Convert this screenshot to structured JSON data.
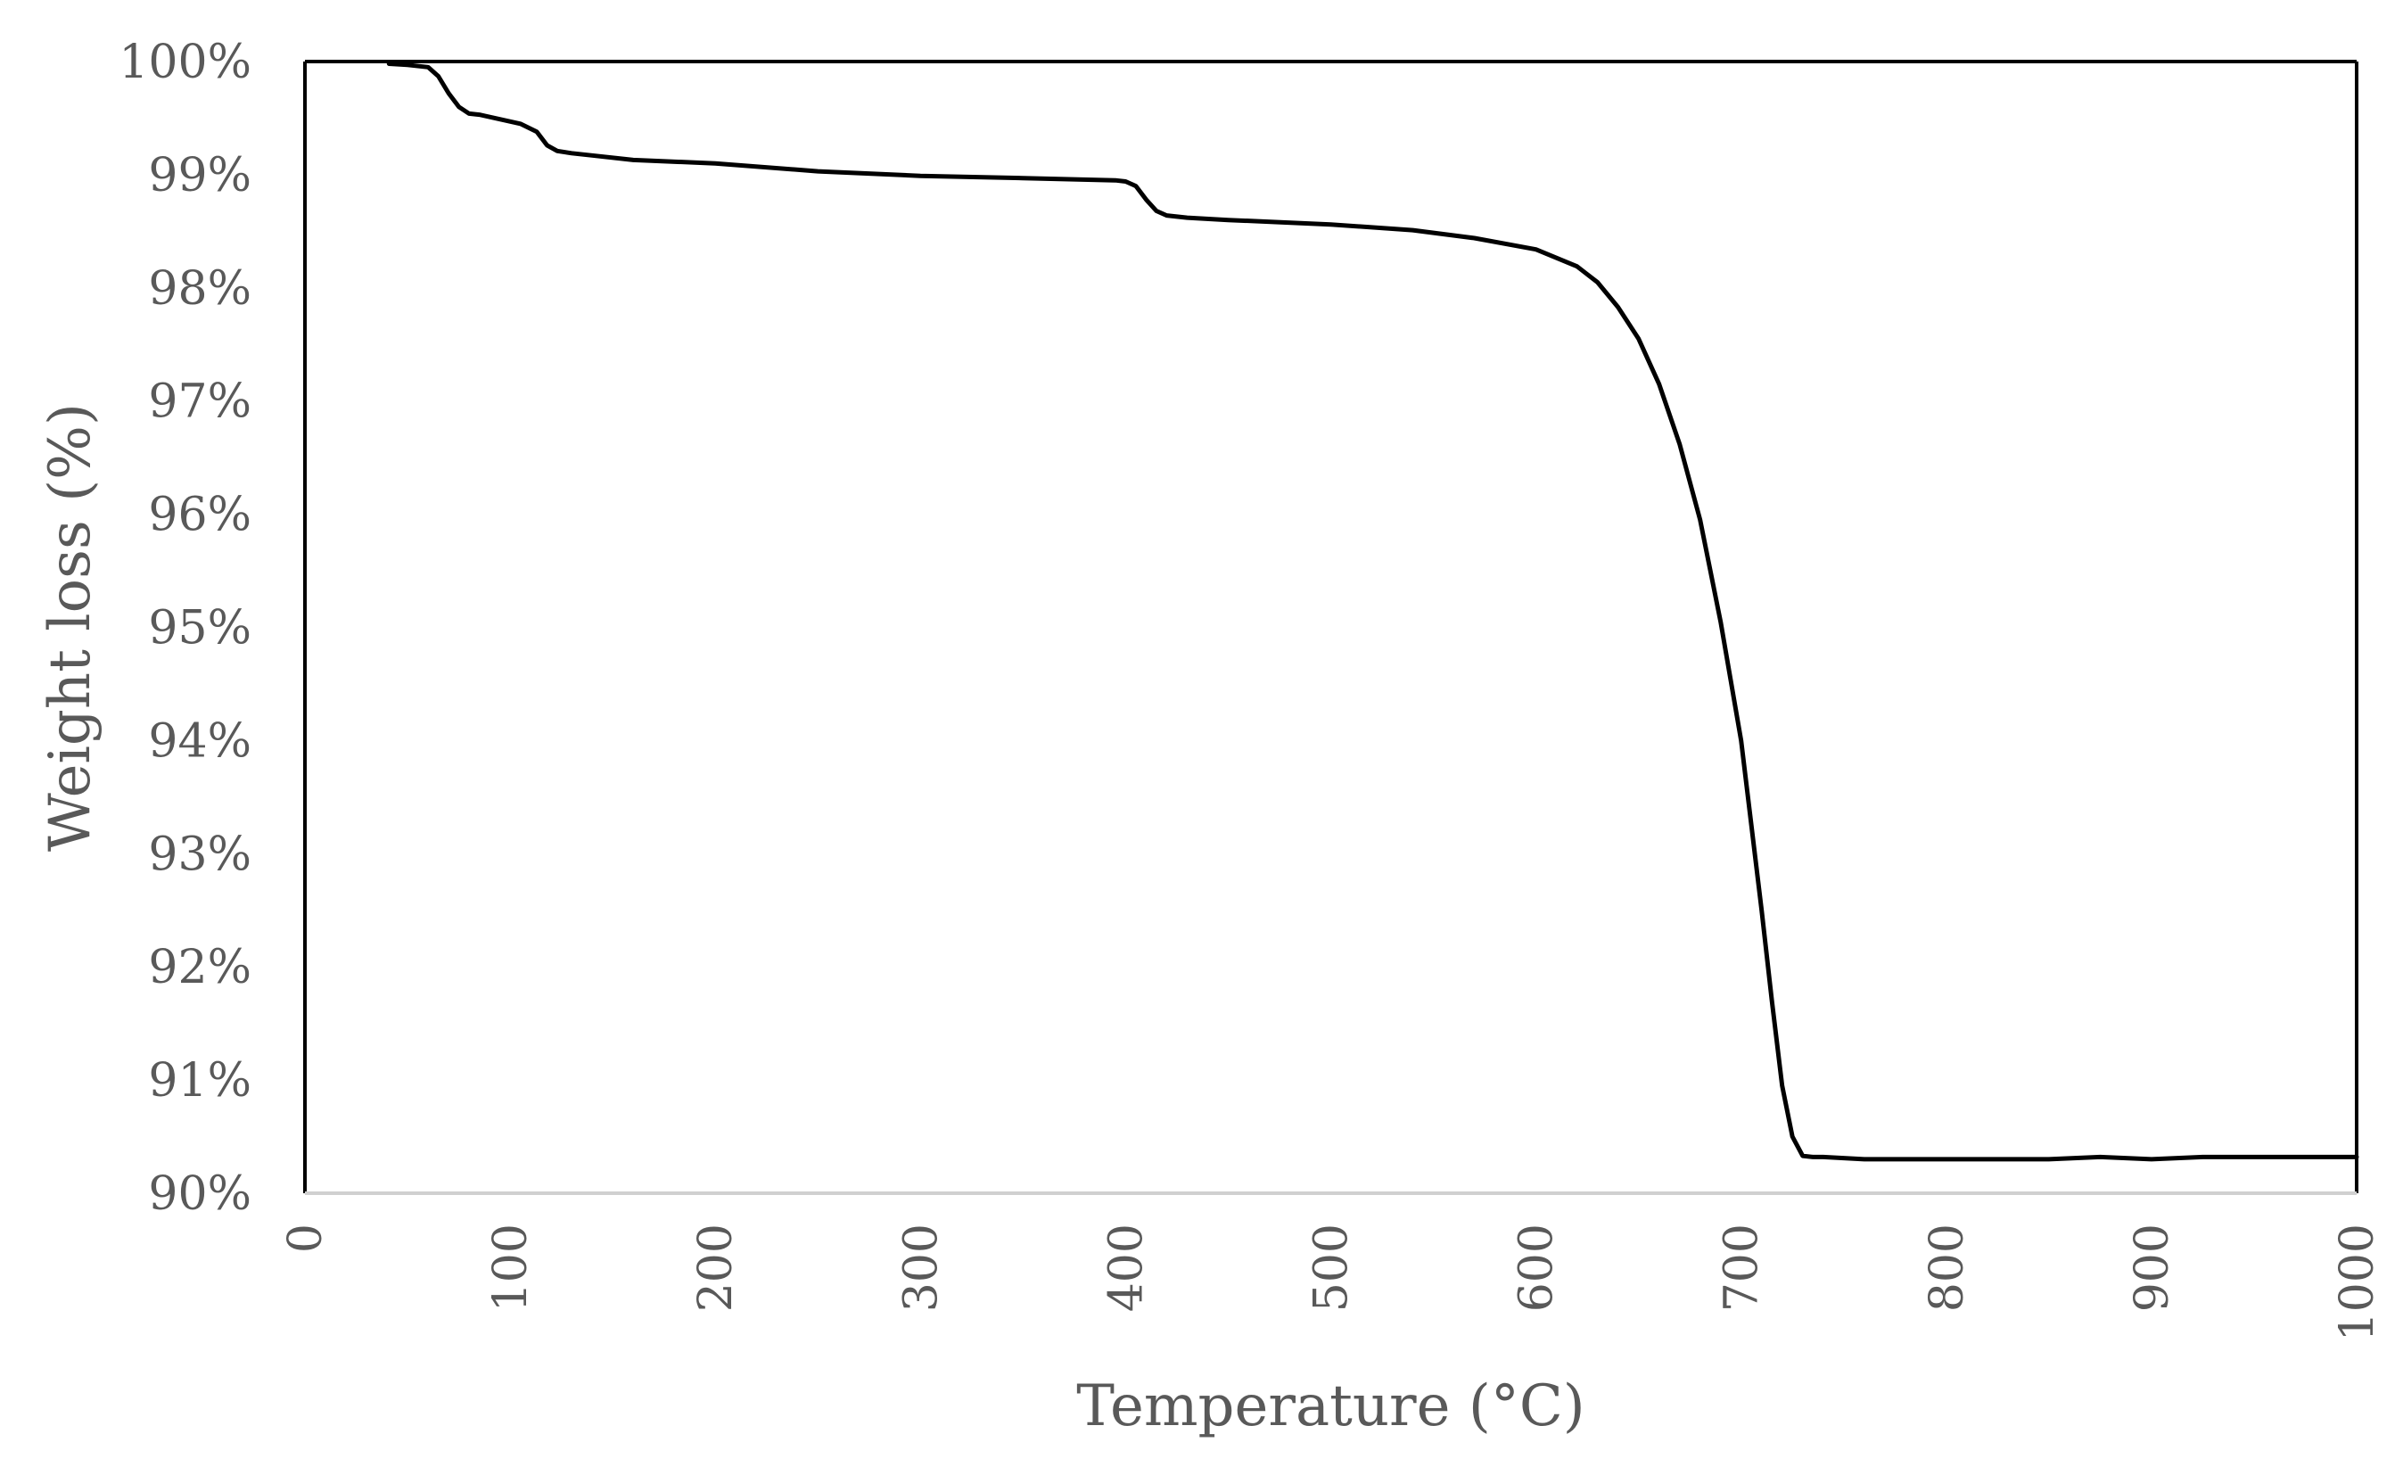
{
  "chart_data": {
    "type": "line",
    "title": "",
    "xlabel": "Temperature (°C)",
    "ylabel": "Weight loss (%)",
    "xlim": [
      0,
      1000
    ],
    "ylim": [
      90,
      100
    ],
    "x_ticks": [
      "0",
      "100",
      "200",
      "300",
      "400",
      "500",
      "600",
      "700",
      "800",
      "900",
      "1000"
    ],
    "y_ticks": [
      "90%",
      "91%",
      "92%",
      "93%",
      "94%",
      "95%",
      "96%",
      "97%",
      "98%",
      "99%",
      "100%"
    ],
    "grid": false,
    "legend": "none",
    "line_color": "#000000",
    "series": [
      {
        "x": [
          41,
          50,
          60,
          65,
          70,
          75,
          80,
          85,
          95,
          105,
          113,
          118,
          123,
          130,
          140,
          160,
          200,
          250,
          300,
          350,
          395,
          400,
          405,
          410,
          415,
          420,
          430,
          450,
          500,
          540,
          570,
          600,
          620,
          630,
          640,
          650,
          660,
          670,
          680,
          690,
          700,
          705,
          710,
          715,
          720,
          725,
          730,
          735,
          740,
          760,
          800,
          850,
          875,
          900,
          925,
          1000
        ],
        "y": [
          99.98,
          99.97,
          99.95,
          99.87,
          99.72,
          99.6,
          99.54,
          99.53,
          99.49,
          99.45,
          99.38,
          99.26,
          99.21,
          99.19,
          99.17,
          99.13,
          99.1,
          99.03,
          98.99,
          98.97,
          98.95,
          98.94,
          98.9,
          98.78,
          98.68,
          98.64,
          98.62,
          98.6,
          98.56,
          98.51,
          98.44,
          98.34,
          98.19,
          98.05,
          97.83,
          97.55,
          97.15,
          96.62,
          95.95,
          95.05,
          94.0,
          93.25,
          92.5,
          91.7,
          90.95,
          90.5,
          90.33,
          90.32,
          90.32,
          90.3,
          90.3,
          90.3,
          90.32,
          90.3,
          90.32,
          90.32
        ]
      }
    ]
  }
}
